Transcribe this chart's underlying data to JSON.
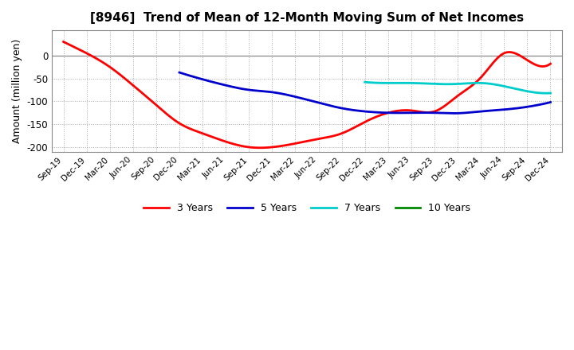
{
  "title": "[8946]  Trend of Mean of 12-Month Moving Sum of Net Incomes",
  "ylabel": "Amount (million yen)",
  "ylim": [
    -210,
    55
  ],
  "yticks": [
    -200,
    -150,
    -100,
    -50,
    0
  ],
  "background_color": "#ffffff",
  "series": {
    "3yr": {
      "color": "#ff0000",
      "label": "3 Years",
      "x": [
        "Sep-19",
        "Dec-19",
        "Mar-20",
        "Jun-20",
        "Sep-20",
        "Dec-20",
        "Mar-21",
        "Jun-21",
        "Sep-21",
        "Dec-21",
        "Mar-22",
        "Jun-22",
        "Sep-22",
        "Dec-22",
        "Mar-23",
        "Jun-23",
        "Sep-23",
        "Dec-23",
        "Mar-24",
        "Jun-24",
        "Sep-24",
        "Dec-24"
      ],
      "y": [
        30,
        5,
        -25,
        -65,
        -108,
        -148,
        -170,
        -188,
        -200,
        -200,
        -192,
        -182,
        -170,
        -145,
        -125,
        -120,
        -122,
        -88,
        -48,
        5,
        -10,
        -18
      ]
    },
    "5yr": {
      "color": "#0000cc",
      "label": "5 Years",
      "x": [
        "Dec-20",
        "Mar-21",
        "Jun-21",
        "Sep-21",
        "Dec-21",
        "Mar-22",
        "Jun-22",
        "Sep-22",
        "Dec-22",
        "Mar-23",
        "Jun-23",
        "Sep-23",
        "Dec-23",
        "Mar-24",
        "Jun-24",
        "Sep-24",
        "Dec-24"
      ],
      "y": [
        -37,
        -52,
        -65,
        -75,
        -80,
        -90,
        -103,
        -115,
        -122,
        -125,
        -125,
        -125,
        -126,
        -122,
        -118,
        -112,
        -102
      ]
    },
    "7yr": {
      "color": "#00cccc",
      "label": "7 Years",
      "x": [
        "Dec-22",
        "Mar-23",
        "Jun-23",
        "Sep-23",
        "Dec-23",
        "Mar-24",
        "Jun-24",
        "Sep-24",
        "Dec-24"
      ],
      "y": [
        -58,
        -60,
        -60,
        -62,
        -62,
        -60,
        -67,
        -78,
        -82
      ]
    },
    "10yr": {
      "color": "#008800",
      "label": "10 Years",
      "x": [],
      "y": []
    }
  },
  "x_labels": [
    "Sep-19",
    "Dec-19",
    "Mar-20",
    "Jun-20",
    "Sep-20",
    "Dec-20",
    "Mar-21",
    "Jun-21",
    "Sep-21",
    "Dec-21",
    "Mar-22",
    "Jun-22",
    "Sep-22",
    "Dec-22",
    "Mar-23",
    "Jun-23",
    "Sep-23",
    "Dec-23",
    "Mar-24",
    "Jun-24",
    "Sep-24",
    "Dec-24"
  ]
}
